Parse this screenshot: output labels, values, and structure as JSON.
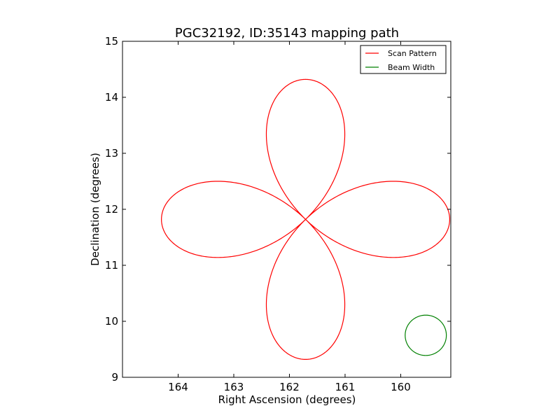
{
  "chart_data": {
    "type": "line",
    "title": "PGC32192, ID:35143 mapping path",
    "xlabel": "Right Ascension (degrees)",
    "ylabel": "Declination (degrees)",
    "xlim": [
      165.0,
      159.1
    ],
    "ylim": [
      9,
      15
    ],
    "x_reversed": true,
    "xticks": [
      164,
      163,
      162,
      161,
      160
    ],
    "xtick_labels": [
      "164",
      "163",
      "162",
      "161",
      "160"
    ],
    "yticks": [
      9,
      10,
      11,
      12,
      13,
      14,
      15
    ],
    "ytick_labels": [
      "9",
      "10",
      "11",
      "12",
      "13",
      "14",
      "15"
    ],
    "grid": false,
    "legend_position": "top-right",
    "series": [
      {
        "name": "Scan Pattern",
        "color": "#ff0000",
        "pattern": "four-leaf rose",
        "center": [
          161.71,
          11.82
        ],
        "petal_length_ra": 2.59,
        "petal_length_dec": 2.5,
        "petal_width_ra": 0.69,
        "petal_width_dec": 0.68
      },
      {
        "name": "Beam Width",
        "color": "#008000",
        "pattern": "circle",
        "center": [
          159.55,
          9.75
        ],
        "radius_ra": 0.37,
        "radius_dec": 0.36
      }
    ]
  }
}
